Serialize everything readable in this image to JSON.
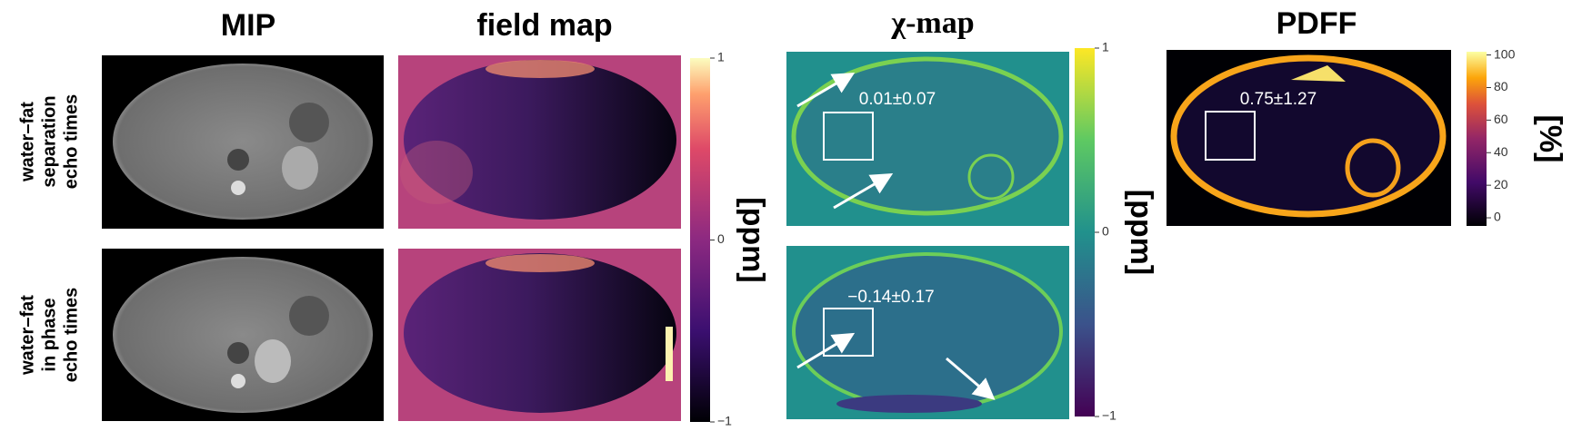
{
  "column_titles": [
    "MIP",
    "field map",
    "χ-map",
    "PDFF"
  ],
  "row_labels": [
    [
      "water–fat",
      "separation",
      "echo times"
    ],
    [
      "water–fat",
      "in phase",
      "echo times"
    ]
  ],
  "colorbars": [
    {
      "label": "[ppm]",
      "lim": [
        -1,
        1
      ],
      "ticks": [
        {
          "value": 1,
          "label": "1"
        },
        0,
        {
          "value": -1,
          "label": "−1"
        }
      ]
    },
    {
      "label": "[ppm]",
      "lim": [
        -1,
        1
      ],
      "ticks": [
        {
          "value": 1,
          "label": "1"
        },
        0,
        {
          "value": -1,
          "label": "−1"
        }
      ]
    },
    {
      "label": "[%]",
      "lim": [
        -5,
        102
      ],
      "ticks": [
        100,
        80,
        60,
        40,
        20,
        0
      ]
    }
  ],
  "roi_values": [
    "0.01±0.07",
    "−0.14±0.17",
    "0.75±1.27"
  ]
}
